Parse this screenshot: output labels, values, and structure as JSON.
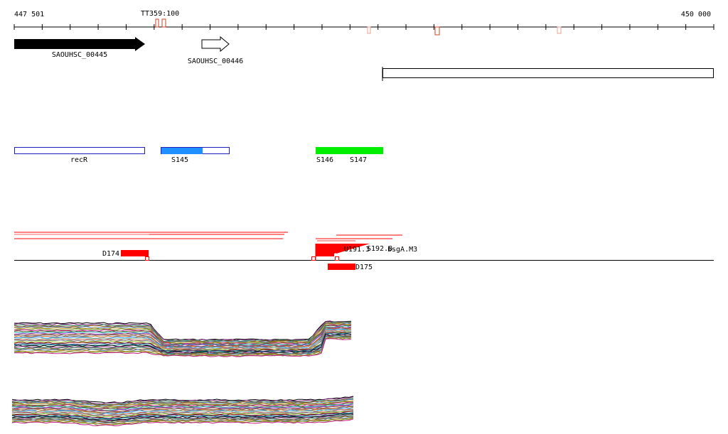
{
  "ruler": {
    "start_label": "447 501",
    "end_label": "450 000",
    "marker_label": "TT359:100"
  },
  "genes": [
    {
      "label": "SAOUHSC_00445",
      "strand": "+",
      "filled": true
    },
    {
      "label": "SAOUHSC_00446",
      "strand": "+",
      "filled": false
    }
  ],
  "segments": [
    {
      "label": "recR",
      "color": "#1f1fbf"
    },
    {
      "label": "S145",
      "color": "#1e90ff"
    },
    {
      "label": "S146",
      "color": "#00ee00"
    },
    {
      "label": "S147",
      "color": "#00ee00"
    }
  ],
  "features": {
    "left_block_label": "D174",
    "below_block_label": "D175",
    "overlap_label_1": "U191.3",
    "overlap_label_2": "S192.8",
    "overlap_label_3": "bsgA.M3",
    "accent_color": "#ff0000"
  }
}
